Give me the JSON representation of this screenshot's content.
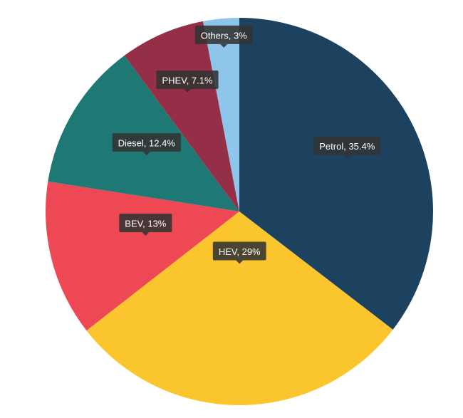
{
  "chart_data": {
    "type": "pie",
    "slices": [
      {
        "name": "Petrol",
        "value": 35.4,
        "label": "Petrol, 35.4%",
        "color": "#1c4260"
      },
      {
        "name": "HEV",
        "value": 29,
        "label": "HEV, 29%",
        "color": "#fbc52d"
      },
      {
        "name": "BEV",
        "value": 13,
        "label": "BEV, 13%",
        "color": "#ee4854"
      },
      {
        "name": "Diesel",
        "value": 12.4,
        "label": "Diesel, 12.4%",
        "color": "#1e7874"
      },
      {
        "name": "PHEV",
        "value": 7.1,
        "label": "PHEV, 7.1%",
        "color": "#952f47"
      },
      {
        "name": "Others",
        "value": 3,
        "label": "Others, 3%",
        "color": "#8ec5ea"
      }
    ],
    "start_angle_deg": 0,
    "direction": "clockwise",
    "tooltip_color": "#333333",
    "tooltip_text_color": "#ffffff"
  }
}
